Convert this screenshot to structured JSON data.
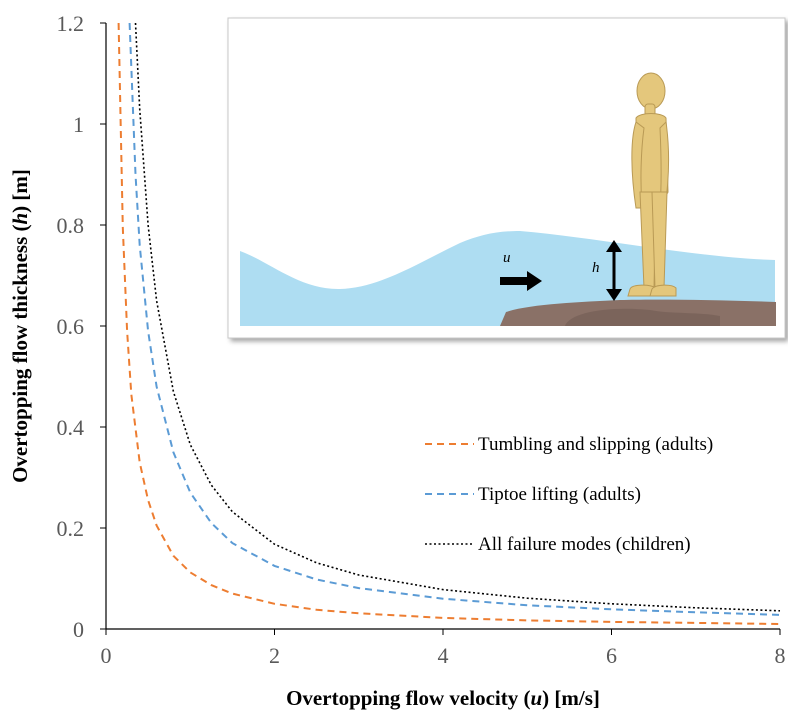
{
  "chart_data": {
    "type": "line",
    "xlabel_parts": [
      "Overtopping flow velocity (",
      "u",
      ") [m/s]"
    ],
    "ylabel_parts": [
      "Overtopping flow thickness (",
      "h",
      ") [m]"
    ],
    "xlim": [
      0,
      8
    ],
    "ylim": [
      0,
      1.2
    ],
    "x_ticks": [
      "0",
      "2",
      "4",
      "6",
      "8"
    ],
    "y_ticks": [
      "0",
      "0.2",
      "0.4",
      "0.6",
      "0.8",
      "1",
      "1.2"
    ],
    "grid": false,
    "legend_position": "right-middle",
    "series": [
      {
        "name": "Tumbling and slipping (adults)",
        "color": "#ED7D31",
        "dash": "dashed",
        "x": [
          0.15,
          0.2,
          0.25,
          0.3,
          0.4,
          0.5,
          0.6,
          0.8,
          1.0,
          1.25,
          1.5,
          2.0,
          2.5,
          3.0,
          4.0,
          5.0,
          6.0,
          7.0,
          8.0
        ],
        "y": [
          1.2,
          0.795,
          0.59,
          0.465,
          0.33,
          0.255,
          0.205,
          0.145,
          0.112,
          0.087,
          0.07,
          0.05,
          0.038,
          0.031,
          0.022,
          0.017,
          0.014,
          0.012,
          0.01
        ]
      },
      {
        "name": "Tiptoe lifting (adults)",
        "color": "#5B9BD5",
        "dash": "dashed",
        "x": [
          0.28,
          0.35,
          0.4,
          0.5,
          0.6,
          0.8,
          1.0,
          1.25,
          1.5,
          2.0,
          2.5,
          3.0,
          4.0,
          5.0,
          6.0,
          7.0,
          8.0
        ],
        "y": [
          1.2,
          0.9,
          0.76,
          0.59,
          0.48,
          0.35,
          0.27,
          0.21,
          0.17,
          0.125,
          0.098,
          0.081,
          0.06,
          0.047,
          0.039,
          0.033,
          0.028
        ]
      },
      {
        "name": "All failure modes (children)",
        "color": "#000000",
        "dash": "dotted",
        "x": [
          0.35,
          0.4,
          0.5,
          0.6,
          0.8,
          1.0,
          1.25,
          1.5,
          2.0,
          2.5,
          3.0,
          4.0,
          5.0,
          6.0,
          7.0,
          8.0
        ],
        "y": [
          1.2,
          1.03,
          0.8,
          0.65,
          0.47,
          0.365,
          0.285,
          0.232,
          0.168,
          0.131,
          0.107,
          0.078,
          0.061,
          0.05,
          0.042,
          0.036
        ]
      }
    ]
  },
  "inset": {
    "velocity_label": "u",
    "thickness_label": "h",
    "colors": {
      "water": "#AEDDF2",
      "rock": "#8A7167",
      "figure": "#E4C77C"
    }
  }
}
